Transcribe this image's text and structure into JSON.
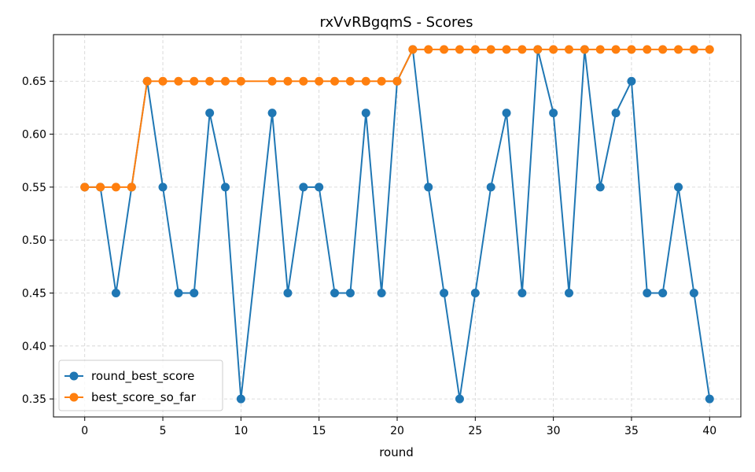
{
  "chart_data": {
    "type": "line",
    "title": "rxVvRBgqmS - Scores",
    "xlabel": "round",
    "ylabel": "",
    "xlim": [
      -2,
      42
    ],
    "ylim": [
      0.333,
      0.694
    ],
    "x_ticks": [
      0,
      5,
      10,
      15,
      20,
      25,
      30,
      35,
      40
    ],
    "y_ticks": [
      0.35,
      0.4,
      0.45,
      0.5,
      0.55,
      0.6,
      0.65
    ],
    "y_tick_labels": [
      "0.35",
      "0.40",
      "0.45",
      "0.50",
      "0.55",
      "0.60",
      "0.65"
    ],
    "grid": true,
    "legend_position": "lower-left",
    "series": [
      {
        "name": "round_best_score",
        "color": "#1f77b4",
        "x": [
          0,
          1,
          2,
          3,
          4,
          5,
          6,
          7,
          8,
          9,
          10,
          12,
          13,
          14,
          15,
          16,
          17,
          18,
          19,
          20,
          21,
          22,
          23,
          24,
          25,
          26,
          27,
          28,
          29,
          30,
          31,
          32,
          33,
          34,
          35,
          36,
          37,
          38,
          39,
          40
        ],
        "values": [
          0.55,
          0.55,
          0.45,
          0.55,
          0.65,
          0.55,
          0.45,
          0.45,
          0.62,
          0.55,
          0.35,
          0.62,
          0.45,
          0.55,
          0.55,
          0.45,
          0.45,
          0.62,
          0.45,
          0.65,
          0.68,
          0.55,
          0.45,
          0.35,
          0.45,
          0.55,
          0.62,
          0.45,
          0.68,
          0.62,
          0.45,
          0.68,
          0.55,
          0.62,
          0.65,
          0.45,
          0.45,
          0.55,
          0.45,
          0.35
        ]
      },
      {
        "name": "best_score_so_far",
        "color": "#ff7f0e",
        "x": [
          0,
          1,
          2,
          3,
          4,
          5,
          6,
          7,
          8,
          9,
          10,
          12,
          13,
          14,
          15,
          16,
          17,
          18,
          19,
          20,
          21,
          22,
          23,
          24,
          25,
          26,
          27,
          28,
          29,
          30,
          31,
          32,
          33,
          34,
          35,
          36,
          37,
          38,
          39,
          40
        ],
        "values": [
          0.55,
          0.55,
          0.55,
          0.55,
          0.65,
          0.65,
          0.65,
          0.65,
          0.65,
          0.65,
          0.65,
          0.65,
          0.65,
          0.65,
          0.65,
          0.65,
          0.65,
          0.65,
          0.65,
          0.65,
          0.68,
          0.68,
          0.68,
          0.68,
          0.68,
          0.68,
          0.68,
          0.68,
          0.68,
          0.68,
          0.68,
          0.68,
          0.68,
          0.68,
          0.68,
          0.68,
          0.68,
          0.68,
          0.68,
          0.68
        ]
      }
    ]
  }
}
